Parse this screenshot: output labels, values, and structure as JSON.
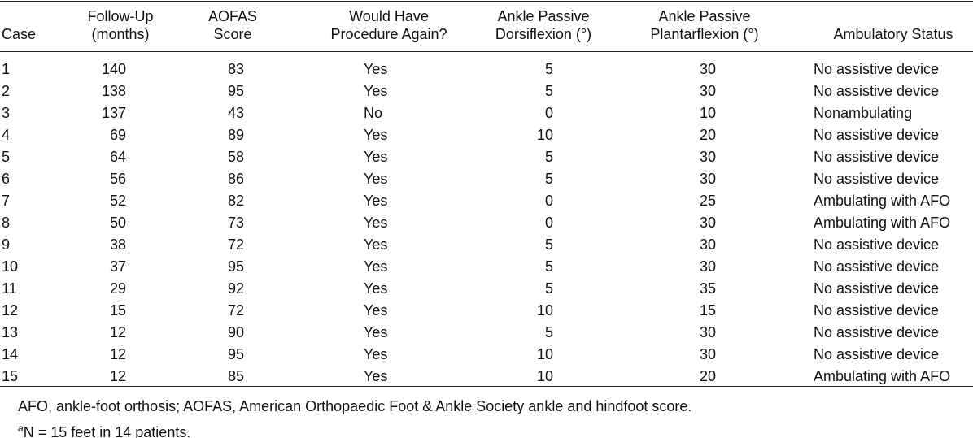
{
  "table": {
    "header": [
      [
        "Case"
      ],
      [
        "Follow-Up",
        "(months)"
      ],
      [
        "AOFAS",
        "Score"
      ],
      [
        "Would Have",
        "Procedure Again?"
      ],
      [
        "Ankle Passive",
        "Dorsiflexion (°)"
      ],
      [
        "Ankle Passive",
        "Plantarflexion (°)"
      ],
      [
        "Ambulatory Status"
      ]
    ],
    "rows": [
      [
        "1",
        "140",
        "83",
        "Yes",
        "5",
        "30",
        "No assistive device"
      ],
      [
        "2",
        "138",
        "95",
        "Yes",
        "5",
        "30",
        "No assistive device"
      ],
      [
        "3",
        "137",
        "43",
        "No",
        "0",
        "10",
        "Nonambulating"
      ],
      [
        "4",
        "69",
        "89",
        "Yes",
        "10",
        "20",
        "No assistive device"
      ],
      [
        "5",
        "64",
        "58",
        "Yes",
        "5",
        "30",
        "No assistive device"
      ],
      [
        "6",
        "56",
        "86",
        "Yes",
        "5",
        "30",
        "No assistive device"
      ],
      [
        "7",
        "52",
        "82",
        "Yes",
        "0",
        "25",
        "Ambulating with AFO"
      ],
      [
        "8",
        "50",
        "73",
        "Yes",
        "0",
        "30",
        "Ambulating with AFO"
      ],
      [
        "9",
        "38",
        "72",
        "Yes",
        "5",
        "30",
        "No assistive device"
      ],
      [
        "10",
        "37",
        "95",
        "Yes",
        "5",
        "30",
        "No assistive device"
      ],
      [
        "11",
        "29",
        "92",
        "Yes",
        "5",
        "35",
        "No assistive device"
      ],
      [
        "12",
        "15",
        "72",
        "Yes",
        "10",
        "15",
        "No assistive device"
      ],
      [
        "13",
        "12",
        "90",
        "Yes",
        "5",
        "30",
        "No assistive device"
      ],
      [
        "14",
        "12",
        "95",
        "Yes",
        "10",
        "30",
        "No assistive device"
      ],
      [
        "15",
        "12",
        "85",
        "Yes",
        "10",
        "20",
        "Ambulating with AFO"
      ]
    ]
  },
  "footnotes": [
    {
      "text": "AFO, ankle-foot orthosis; AOFAS, American Orthopaedic Foot & Ankle Society ankle and hindfoot score."
    },
    {
      "mark": "a",
      "text": "N = 15 feet in 14 patients."
    }
  ]
}
